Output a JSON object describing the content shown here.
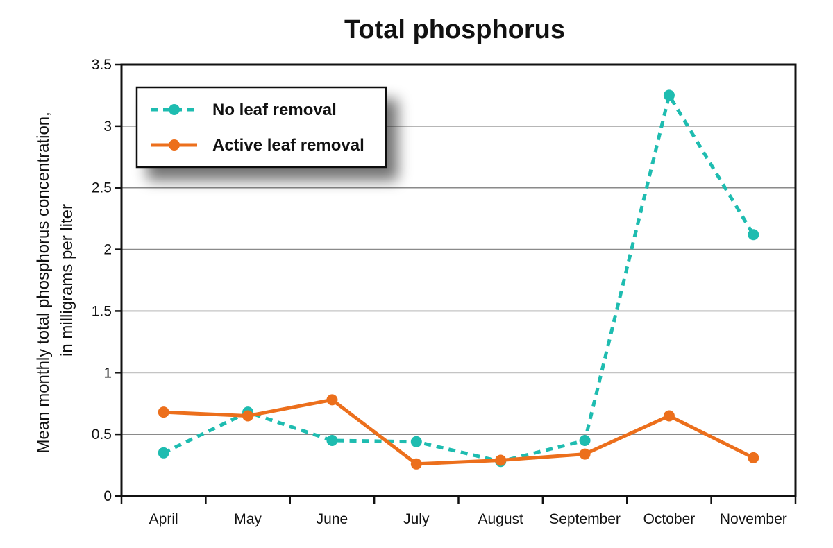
{
  "chart_data": {
    "type": "line",
    "title": "Total phosphorus",
    "xlabel": "",
    "ylabel_lines": [
      "Mean monthly total phosphorus concentration,",
      "in milligrams per liter"
    ],
    "categories": [
      "April",
      "May",
      "June",
      "July",
      "August",
      "September",
      "October",
      "November"
    ],
    "ylim": [
      0,
      3.5
    ],
    "yticks": [
      0,
      0.5,
      1,
      1.5,
      2,
      2.5,
      3,
      3.5
    ],
    "ytick_labels": [
      "0",
      "0.5",
      "1",
      "1.5",
      "2",
      "2.5",
      "3",
      "3.5"
    ],
    "grid": true,
    "legend_position": "top-left",
    "series": [
      {
        "name": "No leaf removal",
        "values": [
          0.35,
          0.68,
          0.45,
          0.44,
          0.28,
          0.45,
          3.25,
          2.12
        ],
        "color": "#1ebcb0",
        "style": "dashed"
      },
      {
        "name": "Active leaf removal",
        "values": [
          0.68,
          0.65,
          0.78,
          0.26,
          0.29,
          0.34,
          0.65,
          0.31
        ],
        "color": "#ec6f1c",
        "style": "solid"
      }
    ]
  }
}
